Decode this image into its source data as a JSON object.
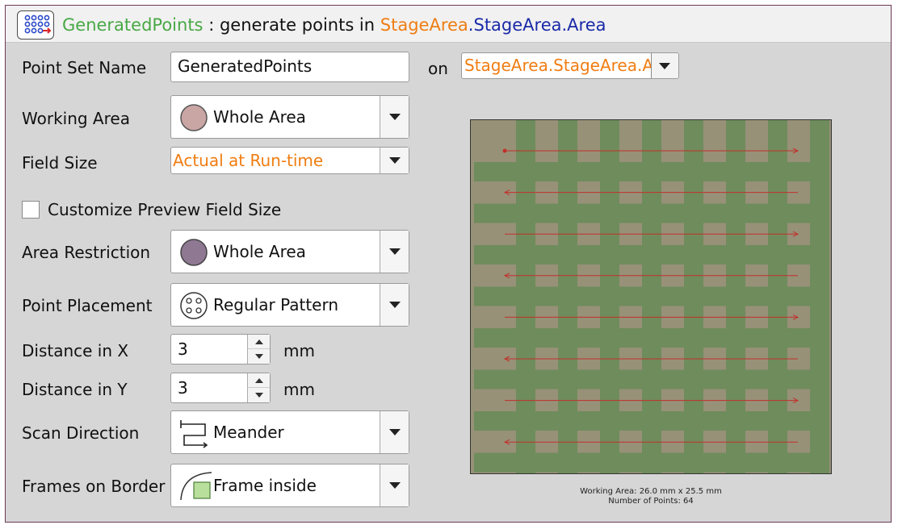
{
  "header": {
    "set_name": "GeneratedPoints",
    "separator": ":",
    "description": "generate points in",
    "area_part1": "StageArea",
    "area_dot": ".",
    "area_part2": "StageArea.Area"
  },
  "form": {
    "point_set_name": {
      "label": "Point Set Name",
      "value": "GeneratedPoints"
    },
    "on_label": "on",
    "on_value": "StageArea.StageArea.Ar",
    "working_area": {
      "label": "Working Area",
      "value": "Whole Area"
    },
    "field_size": {
      "label": "Field Size",
      "value": "Actual at Run-time"
    },
    "customize_preview": {
      "label": "Customize Preview Field Size",
      "checked": false
    },
    "area_restriction": {
      "label": "Area Restriction",
      "value": "Whole Area"
    },
    "point_placement": {
      "label": "Point Placement",
      "value": "Regular Pattern"
    },
    "distance_x": {
      "label": "Distance in X",
      "value": "3",
      "unit": "mm"
    },
    "distance_y": {
      "label": "Distance in Y",
      "value": "3",
      "unit": "mm"
    },
    "scan_direction": {
      "label": "Scan Direction",
      "value": "Meander"
    },
    "frames_on_border": {
      "label": "Frames on Border",
      "value": "Frame inside"
    }
  },
  "preview": {
    "columns": 8,
    "rows": 8,
    "scan_rows": 8,
    "caption_line1": "Working Area: 26.0 mm x 25.5 mm",
    "caption_line2": "Number of Points: 64"
  },
  "colors": {
    "background": "#979178",
    "field": "#6f8c5c",
    "scan_line": "#c2302a",
    "working_area_swatch": "#c9a5a3",
    "area_restriction_swatch": "#8e7892"
  }
}
